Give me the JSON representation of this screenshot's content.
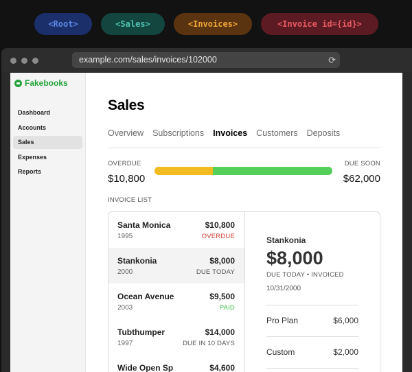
{
  "route_pills": [
    {
      "label": "<Root>",
      "bg": "#1b2f6b",
      "fg": "#5d86e6"
    },
    {
      "label": "<Sales>",
      "bg": "#13463f",
      "fg": "#4fc1b0"
    },
    {
      "label": "<Invoices>",
      "bg": "#5a3410",
      "fg": "#f0a43a"
    },
    {
      "label": "<Invoice id={id}>",
      "bg": "#5c1a22",
      "fg": "#e85a64"
    }
  ],
  "browser": {
    "url": "example.com/sales/invoices/102000",
    "reload_icon": "⟳"
  },
  "brand": {
    "name": "Fakebooks",
    "color": "#22a33a"
  },
  "sidebar": {
    "items": [
      {
        "label": "Dashboard"
      },
      {
        "label": "Accounts"
      },
      {
        "label": "Sales",
        "active": true
      },
      {
        "label": "Expenses"
      },
      {
        "label": "Reports"
      }
    ]
  },
  "page": {
    "title": "Sales",
    "tabs": [
      "Overview",
      "Subscriptions",
      "Invoices",
      "Customers",
      "Deposits"
    ],
    "active_tab": "Invoices"
  },
  "summary": {
    "overdue_label": "OVERDUE",
    "overdue_amount": "$10,800",
    "due_soon_label": "DUE SOON",
    "due_soon_amount": "$62,000",
    "overdue_fraction": 0.33,
    "colors": {
      "overdue": "#f2bb1f",
      "due_soon": "#54cf5a"
    }
  },
  "invoice_list": {
    "label": "INVOICE LIST",
    "rows": [
      {
        "name": "Santa Monica",
        "amount": "$10,800",
        "year": "1995",
        "status": "OVERDUE",
        "status_color": "#d03a2f"
      },
      {
        "name": "Stankonia",
        "amount": "$8,000",
        "year": "2000",
        "status": "DUE TODAY",
        "status_color": "#555555",
        "selected": true
      },
      {
        "name": "Ocean Avenue",
        "amount": "$9,500",
        "year": "2003",
        "status": "PAID",
        "status_color": "#3bbf4a"
      },
      {
        "name": "Tubthumper",
        "amount": "$14,000",
        "year": "1997",
        "status": "DUE IN 10 DAYS",
        "status_color": "#555555"
      },
      {
        "name": "Wide Open Sp",
        "amount": "$4,600",
        "year": "",
        "status": "",
        "status_color": "#555555"
      }
    ]
  },
  "invoice_detail": {
    "customer": "Stankonia",
    "amount": "$8,000",
    "status": "DUE TODAY • INVOICED",
    "date": "10/31/2000",
    "line_items": [
      {
        "label": "Pro Plan",
        "amount": "$6,000"
      },
      {
        "label": "Custom",
        "amount": "$2,000"
      }
    ]
  }
}
